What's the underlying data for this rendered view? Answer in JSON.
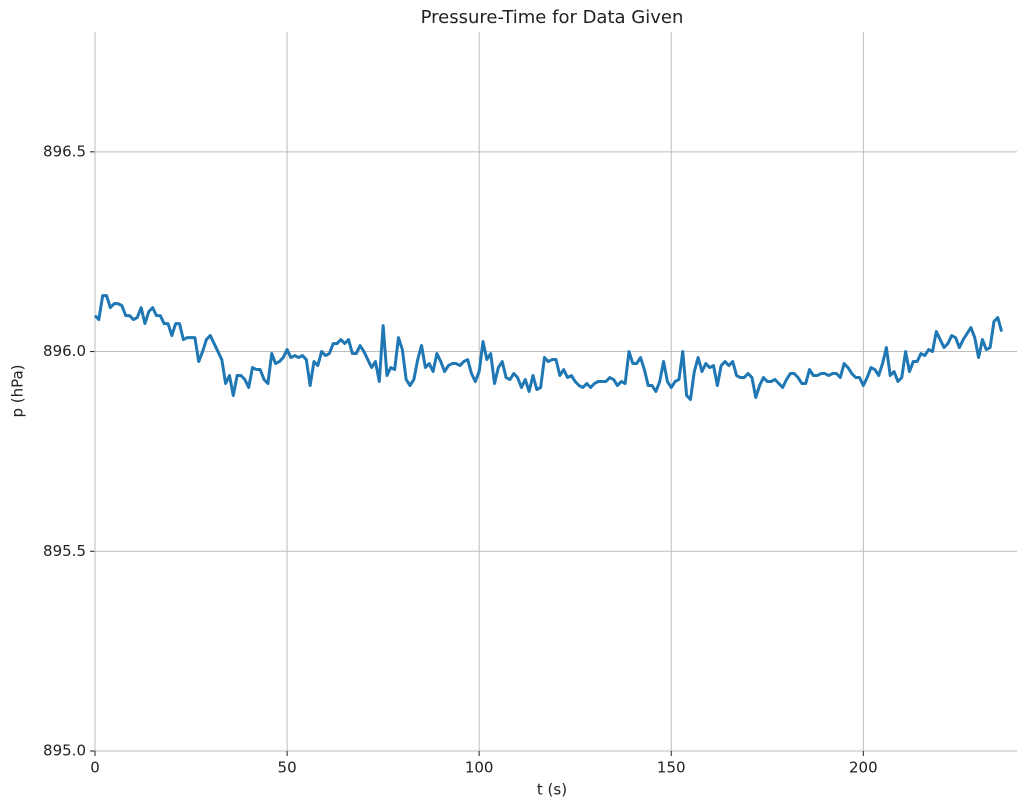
{
  "chart_data": {
    "type": "line",
    "title": "Pressure-Time for Data Given",
    "x_label": "t (s)",
    "y_label": "p (hPa)",
    "color": "#1f77b4",
    "grid": true,
    "xlim": [
      0,
      240
    ],
    "ylim": [
      895.0,
      896.8
    ],
    "xticks": [
      0,
      50,
      100,
      150,
      200
    ],
    "yticks": [
      {
        "value": 895.0,
        "label": "895.0"
      },
      895.5,
      {
        "value": 896.0,
        "label": "896.0"
      },
      896.5
    ],
    "x": [
      0,
      1,
      2,
      3,
      4,
      5,
      6,
      7,
      8,
      9,
      10,
      11,
      12,
      13,
      14,
      15,
      16,
      17,
      18,
      19,
      20,
      21,
      22,
      23,
      24,
      25,
      26,
      27,
      28,
      29,
      30,
      31,
      32,
      33,
      34,
      35,
      36,
      37,
      38,
      39,
      40,
      41,
      42,
      43,
      44,
      45,
      46,
      47,
      48,
      49,
      50,
      51,
      52,
      53,
      54,
      55,
      56,
      57,
      58,
      59,
      60,
      61,
      62,
      63,
      64,
      65,
      66,
      67,
      68,
      69,
      70,
      71,
      72,
      73,
      74,
      75,
      76,
      77,
      78,
      79,
      80,
      81,
      82,
      83,
      84,
      85,
      86,
      87,
      88,
      89,
      90,
      91,
      92,
      93,
      94,
      95,
      96,
      97,
      98,
      99,
      100,
      101,
      102,
      103,
      104,
      105,
      106,
      107,
      108,
      109,
      110,
      111,
      112,
      113,
      114,
      115,
      116,
      117,
      118,
      119,
      120,
      121,
      122,
      123,
      124,
      125,
      126,
      127,
      128,
      129,
      130,
      131,
      132,
      133,
      134,
      135,
      136,
      137,
      138,
      139,
      140,
      141,
      142,
      143,
      144,
      145,
      146,
      147,
      148,
      149,
      150,
      151,
      152,
      153,
      154,
      155,
      156,
      157,
      158,
      159,
      160,
      161,
      162,
      163,
      164,
      165,
      166,
      167,
      168,
      169,
      170,
      171,
      172,
      173,
      174,
      175,
      176,
      177,
      178,
      179,
      180,
      181,
      182,
      183,
      184,
      185,
      186,
      187,
      188,
      189,
      190,
      191,
      192,
      193,
      194,
      195,
      196,
      197,
      198,
      199,
      200,
      201,
      202,
      203,
      204,
      205,
      206,
      207,
      208,
      209,
      210,
      211,
      212,
      213,
      214,
      215,
      216,
      217,
      218,
      219,
      220,
      221,
      222,
      223,
      224,
      225,
      226,
      227,
      228,
      229,
      230,
      231,
      232,
      233,
      234,
      235,
      236
    ],
    "values": [
      896.09,
      896.08,
      896.14,
      896.14,
      896.11,
      896.12,
      896.12,
      896.115,
      896.09,
      896.09,
      896.08,
      896.085,
      896.11,
      896.07,
      896.1,
      896.11,
      896.09,
      896.09,
      896.07,
      896.07,
      896.04,
      896.07,
      896.07,
      896.03,
      896.035,
      896.035,
      896.035,
      895.975,
      896.0,
      896.03,
      896.04,
      896.02,
      896.0,
      895.98,
      895.92,
      895.94,
      895.89,
      895.94,
      895.94,
      895.93,
      895.91,
      895.96,
      895.955,
      895.955,
      895.93,
      895.92,
      895.995,
      895.97,
      895.975,
      895.985,
      896.005,
      895.985,
      895.99,
      895.985,
      895.99,
      895.98,
      895.915,
      895.975,
      895.965,
      896.0,
      895.99,
      895.995,
      896.02,
      896.02,
      896.03,
      896.02,
      896.03,
      895.995,
      895.995,
      896.015,
      896.0,
      895.98,
      895.96,
      895.975,
      895.925,
      896.065,
      895.94,
      895.96,
      895.955,
      896.035,
      896.005,
      895.93,
      895.915,
      895.93,
      895.98,
      896.015,
      895.96,
      895.97,
      895.95,
      895.995,
      895.975,
      895.95,
      895.965,
      895.97,
      895.97,
      895.965,
      895.975,
      895.98,
      895.945,
      895.925,
      895.95,
      896.025,
      895.98,
      895.995,
      895.92,
      895.96,
      895.975,
      895.935,
      895.93,
      895.945,
      895.935,
      895.91,
      895.93,
      895.9,
      895.94,
      895.905,
      895.91,
      895.985,
      895.975,
      895.98,
      895.98,
      895.94,
      895.955,
      895.935,
      895.94,
      895.925,
      895.915,
      895.91,
      895.92,
      895.91,
      895.92,
      895.925,
      895.925,
      895.925,
      895.935,
      895.93,
      895.915,
      895.925,
      895.92,
      896.0,
      895.97,
      895.97,
      895.985,
      895.955,
      895.915,
      895.915,
      895.9,
      895.925,
      895.975,
      895.925,
      895.91,
      895.925,
      895.93,
      896.0,
      895.89,
      895.88,
      895.95,
      895.985,
      895.95,
      895.97,
      895.96,
      895.965,
      895.915,
      895.965,
      895.975,
      895.965,
      895.975,
      895.94,
      895.935,
      895.935,
      895.945,
      895.935,
      895.885,
      895.915,
      895.935,
      895.925,
      895.925,
      895.93,
      895.92,
      895.91,
      895.93,
      895.945,
      895.945,
      895.935,
      895.92,
      895.92,
      895.955,
      895.94,
      895.94,
      895.945,
      895.945,
      895.94,
      895.945,
      895.945,
      895.935,
      895.97,
      895.96,
      895.945,
      895.935,
      895.935,
      895.915,
      895.935,
      895.96,
      895.955,
      895.94,
      895.97,
      896.01,
      895.94,
      895.95,
      895.925,
      895.935,
      896.0,
      895.95,
      895.975,
      895.975,
      895.995,
      895.99,
      896.005,
      896.0,
      896.05,
      896.03,
      896.01,
      896.02,
      896.04,
      896.035,
      896.01,
      896.03,
      896.045,
      896.06,
      896.035,
      895.985,
      896.03,
      896.005,
      896.01,
      896.075,
      896.085,
      896.05
    ]
  }
}
